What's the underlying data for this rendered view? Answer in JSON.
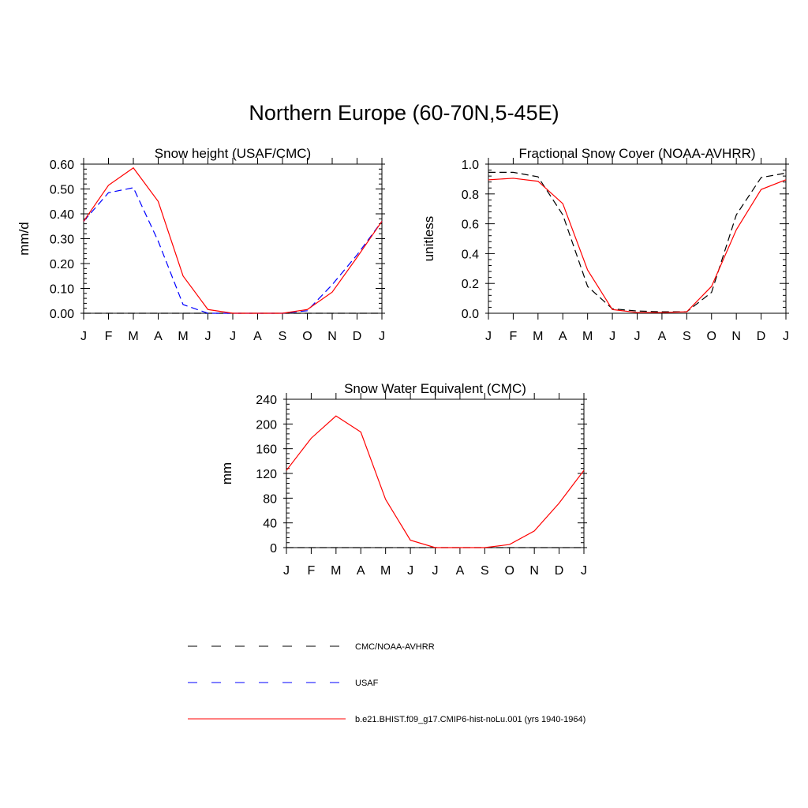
{
  "title": "Northern Europe (60-70N,5-45E)",
  "months": [
    "J",
    "F",
    "M",
    "A",
    "M",
    "J",
    "J",
    "A",
    "S",
    "O",
    "N",
    "D",
    "J"
  ],
  "legend": [
    {
      "label": "CMC/NOAA-AVHRR",
      "color": "#000000",
      "style": "dashed"
    },
    {
      "label": "USAF",
      "color": "#0000ff",
      "style": "dashed"
    },
    {
      "label": "b.e21.BHIST.f09_g17.CMIP6-hist-noLu.001 (yrs 1940-1964)",
      "color": "#ff0000",
      "style": "solid"
    }
  ],
  "chart_data": [
    {
      "type": "line",
      "title": "Snow height (USAF/CMC)",
      "ylabel": "mm/d",
      "ylim": [
        0,
        0.6
      ],
      "yticks": [
        "0.00",
        "0.10",
        "0.20",
        "0.30",
        "0.40",
        "0.50",
        "0.60"
      ],
      "yticks_values": [
        0,
        0.1,
        0.2,
        0.3,
        0.4,
        0.5,
        0.6
      ],
      "series": [
        {
          "name": "CMC/NOAA-AVHRR",
          "color": "#000000",
          "dashed": true,
          "values": [
            0,
            0,
            0,
            0,
            0,
            0,
            0,
            0,
            0,
            0,
            0,
            0,
            0
          ]
        },
        {
          "name": "USAF",
          "color": "#0000ff",
          "dashed": true,
          "values": [
            0.37,
            0.485,
            0.505,
            0.29,
            0.035,
            0.0,
            0.0,
            0.0,
            0.0,
            0.01,
            0.115,
            0.235,
            0.37
          ]
        },
        {
          "name": "b.e21.BHIST.f09_g17.CMIP6-hist-noLu.001 (yrs 1940-1964)",
          "color": "#ff0000",
          "dashed": false,
          "values": [
            0.37,
            0.515,
            0.585,
            0.45,
            0.15,
            0.015,
            0.0,
            0.0,
            0.0,
            0.015,
            0.085,
            0.225,
            0.37
          ]
        }
      ]
    },
    {
      "type": "line",
      "title": "Fractional Snow Cover (NOAA-AVHRR)",
      "ylabel": "unitless",
      "ylim": [
        0,
        1.0
      ],
      "yticks": [
        "0.0",
        "0.2",
        "0.4",
        "0.6",
        "0.8",
        "1.0"
      ],
      "yticks_values": [
        0,
        0.2,
        0.4,
        0.6,
        0.8,
        1.0
      ],
      "series": [
        {
          "name": "CMC/NOAA-AVHRR",
          "color": "#000000",
          "dashed": true,
          "values": [
            0.945,
            0.945,
            0.915,
            0.66,
            0.18,
            0.03,
            0.015,
            0.01,
            0.01,
            0.14,
            0.66,
            0.91,
            0.94
          ]
        },
        {
          "name": "b.e21.BHIST.f09_g17.CMIP6-hist-noLu.001 (yrs 1940-1964)",
          "color": "#ff0000",
          "dashed": false,
          "values": [
            0.895,
            0.905,
            0.885,
            0.735,
            0.29,
            0.025,
            0.005,
            0.005,
            0.01,
            0.18,
            0.56,
            0.83,
            0.895
          ]
        }
      ]
    },
    {
      "type": "line",
      "title": "Snow Water Equivalent (CMC)",
      "ylabel": "mm",
      "ylim": [
        0,
        240
      ],
      "yticks": [
        "0",
        "40",
        "80",
        "120",
        "160",
        "200",
        "240"
      ],
      "yticks_values": [
        0,
        40,
        80,
        120,
        160,
        200,
        240
      ],
      "series": [
        {
          "name": "CMC/NOAA-AVHRR",
          "color": "#000000",
          "dashed": true,
          "values": [
            0,
            0,
            0,
            0,
            0,
            0,
            0,
            0,
            0,
            0,
            0,
            0,
            0
          ]
        },
        {
          "name": "b.e21.BHIST.f09_g17.CMIP6-hist-noLu.001 (yrs 1940-1964)",
          "color": "#ff0000",
          "dashed": false,
          "values": [
            125,
            177,
            213,
            187,
            78,
            12,
            0,
            0,
            0,
            5,
            27,
            72,
            125
          ]
        }
      ]
    }
  ]
}
